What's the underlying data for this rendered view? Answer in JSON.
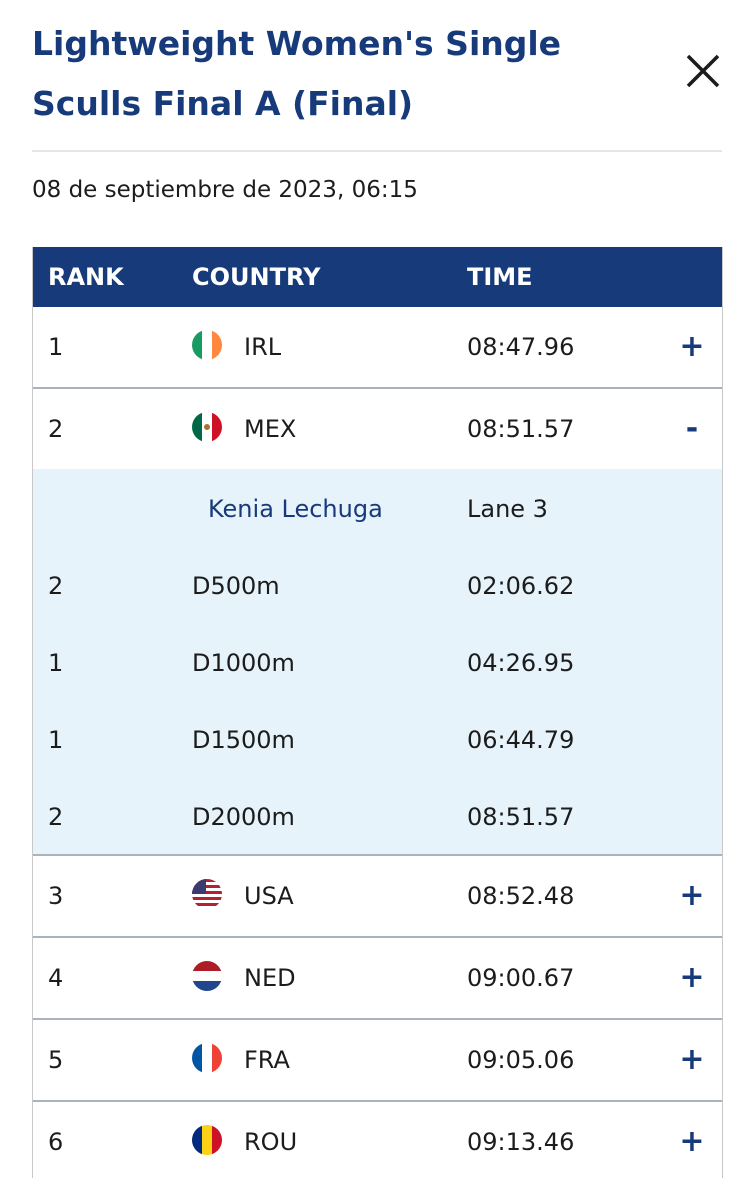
{
  "header": {
    "title": "Lightweight Women's Single Sculls Final A (Final)",
    "date": "08 de septiembre de 2023, 06:15"
  },
  "table": {
    "columns": [
      "RANK",
      "COUNTRY",
      "TIME"
    ],
    "rows": [
      {
        "rank": "1",
        "country": "IRL",
        "time": "08:47.96",
        "toggle": "+"
      },
      {
        "rank": "2",
        "country": "MEX",
        "time": "08:51.57",
        "toggle": "-",
        "detail": {
          "athlete": "Kenia Lechuga",
          "lane": "Lane 3",
          "splits": [
            {
              "rank": "2",
              "distance": "D500m",
              "time": "02:06.62"
            },
            {
              "rank": "1",
              "distance": "D1000m",
              "time": "04:26.95"
            },
            {
              "rank": "1",
              "distance": "D1500m",
              "time": "06:44.79"
            },
            {
              "rank": "2",
              "distance": "D2000m",
              "time": "08:51.57"
            }
          ]
        }
      },
      {
        "rank": "3",
        "country": "USA",
        "time": "08:52.48",
        "toggle": "+"
      },
      {
        "rank": "4",
        "country": "NED",
        "time": "09:00.67",
        "toggle": "+"
      },
      {
        "rank": "5",
        "country": "FRA",
        "time": "09:05.06",
        "toggle": "+"
      },
      {
        "rank": "6",
        "country": "ROU",
        "time": "09:13.46",
        "toggle": "+"
      }
    ]
  }
}
